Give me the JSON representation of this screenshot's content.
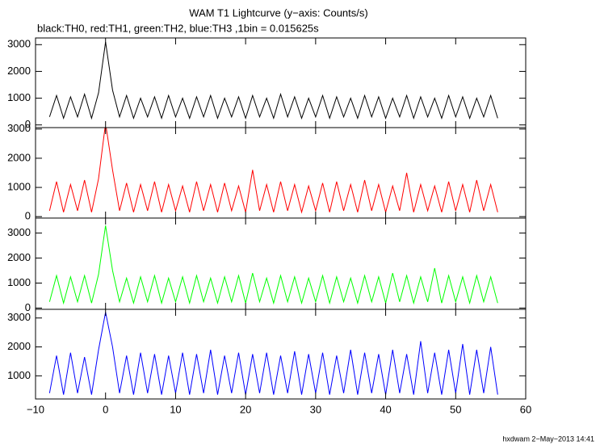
{
  "chart_data": [
    {
      "type": "line",
      "title": "WAM T1 Lightcurve (y−axis: Counts/s)",
      "subtitle": "black:TH0, red:TH1, green:TH2, blue:TH3 ,1bin = 0.015625s",
      "x": [
        -8,
        -7,
        -6,
        -5,
        -4,
        -3,
        -2,
        -1,
        0,
        1,
        2,
        3,
        4,
        5,
        6,
        7,
        8,
        9,
        10,
        11,
        12,
        13,
        14,
        15,
        16,
        17,
        18,
        19,
        20,
        21,
        22,
        23,
        24,
        25,
        26,
        27,
        28,
        29,
        30,
        31,
        32,
        33,
        34,
        35,
        36,
        37,
        38,
        39,
        40,
        41,
        42,
        43,
        44,
        45,
        46,
        47,
        48,
        49,
        50,
        51,
        52,
        53,
        54,
        55,
        56
      ],
      "series": [
        {
          "color": "#000000",
          "values": [
            300,
            1100,
            250,
            1050,
            300,
            1150,
            250,
            1200,
            3100,
            1300,
            300,
            1100,
            250,
            1000,
            300,
            1050,
            250,
            1100,
            300,
            1000,
            250,
            1050,
            300,
            1100,
            250,
            1000,
            300,
            1050,
            250,
            1100,
            300,
            1000,
            250,
            1150,
            300,
            1050,
            250,
            1000,
            300,
            1100,
            250,
            1050,
            300,
            1000,
            250,
            1100,
            300,
            1050,
            250,
            1000,
            300,
            1100,
            250,
            1050,
            300,
            1000,
            250,
            1100,
            300,
            1050,
            250,
            1000,
            300,
            1100,
            250
          ]
        }
      ],
      "xlim": [
        -10,
        60
      ],
      "ylim": [
        -100,
        3250
      ],
      "yticks": [
        0,
        1000,
        2000,
        3000
      ]
    },
    {
      "type": "line",
      "x": [
        -8,
        -7,
        -6,
        -5,
        -4,
        -3,
        -2,
        -1,
        0,
        1,
        2,
        3,
        4,
        5,
        6,
        7,
        8,
        9,
        10,
        11,
        12,
        13,
        14,
        15,
        16,
        17,
        18,
        19,
        20,
        21,
        22,
        23,
        24,
        25,
        26,
        27,
        28,
        29,
        30,
        31,
        32,
        33,
        34,
        35,
        36,
        37,
        38,
        39,
        40,
        41,
        42,
        43,
        44,
        45,
        46,
        47,
        48,
        49,
        50,
        51,
        52,
        53,
        54,
        55,
        56
      ],
      "series": [
        {
          "color": "#ff0000",
          "values": [
            200,
            1200,
            150,
            1100,
            200,
            1250,
            150,
            1300,
            3200,
            1600,
            200,
            1150,
            150,
            1100,
            200,
            1200,
            150,
            1100,
            200,
            1050,
            150,
            1200,
            200,
            1100,
            150,
            1150,
            200,
            1050,
            150,
            1600,
            200,
            1100,
            150,
            1200,
            200,
            1100,
            150,
            1050,
            200,
            1150,
            150,
            1200,
            200,
            1100,
            150,
            1250,
            200,
            1100,
            150,
            1050,
            200,
            1500,
            150,
            1100,
            200,
            1050,
            150,
            1200,
            200,
            1100,
            150,
            1250,
            200,
            1100,
            150
          ]
        }
      ],
      "xlim": [
        -10,
        60
      ],
      "ylim": [
        -50,
        3050
      ],
      "yticks": [
        0,
        1000,
        2000,
        3000
      ]
    },
    {
      "type": "line",
      "x": [
        -8,
        -7,
        -6,
        -5,
        -4,
        -3,
        -2,
        -1,
        0,
        1,
        2,
        3,
        4,
        5,
        6,
        7,
        8,
        9,
        10,
        11,
        12,
        13,
        14,
        15,
        16,
        17,
        18,
        19,
        20,
        21,
        22,
        23,
        24,
        25,
        26,
        27,
        28,
        29,
        30,
        31,
        32,
        33,
        34,
        35,
        36,
        37,
        38,
        39,
        40,
        41,
        42,
        43,
        44,
        45,
        46,
        47,
        48,
        49,
        50,
        51,
        52,
        53,
        54,
        55,
        56
      ],
      "series": [
        {
          "color": "#00ff00",
          "values": [
            250,
            1300,
            200,
            1250,
            250,
            1300,
            200,
            1350,
            3300,
            1500,
            250,
            1200,
            200,
            1250,
            250,
            1300,
            200,
            1200,
            250,
            1250,
            200,
            1300,
            250,
            1200,
            200,
            1250,
            250,
            1300,
            200,
            1400,
            250,
            1200,
            200,
            1300,
            250,
            1250,
            200,
            1200,
            250,
            1300,
            200,
            1250,
            250,
            1200,
            200,
            1300,
            250,
            1250,
            200,
            1400,
            250,
            1300,
            200,
            1250,
            250,
            1600,
            200,
            1300,
            250,
            1250,
            200,
            1300,
            250,
            1250,
            200
          ]
        }
      ],
      "xlim": [
        -10,
        60
      ],
      "ylim": [
        -50,
        3600
      ],
      "yticks": [
        0,
        1000,
        2000,
        3000
      ]
    },
    {
      "type": "line",
      "x": [
        -8,
        -7,
        -6,
        -5,
        -4,
        -3,
        -2,
        -1,
        0,
        1,
        2,
        3,
        4,
        5,
        6,
        7,
        8,
        9,
        10,
        11,
        12,
        13,
        14,
        15,
        16,
        17,
        18,
        19,
        20,
        21,
        22,
        23,
        24,
        25,
        26,
        27,
        28,
        29,
        30,
        31,
        32,
        33,
        34,
        35,
        36,
        37,
        38,
        39,
        40,
        41,
        42,
        43,
        44,
        45,
        46,
        47,
        48,
        49,
        50,
        51,
        52,
        53,
        54,
        55,
        56
      ],
      "series": [
        {
          "color": "#0000ff",
          "values": [
            400,
            1700,
            350,
            1800,
            400,
            1650,
            350,
            1900,
            3200,
            2000,
            400,
            1700,
            350,
            1800,
            400,
            1750,
            350,
            1700,
            400,
            1800,
            350,
            1750,
            400,
            1900,
            350,
            1700,
            400,
            1800,
            350,
            1750,
            400,
            1800,
            350,
            1700,
            400,
            1850,
            350,
            1750,
            400,
            1800,
            350,
            1700,
            400,
            1900,
            350,
            1800,
            400,
            1750,
            350,
            1900,
            400,
            1750,
            350,
            2200,
            400,
            1800,
            350,
            1900,
            400,
            2100,
            350,
            1900,
            400,
            2000,
            350
          ]
        }
      ],
      "xlim": [
        -10,
        60
      ],
      "ylim": [
        200,
        3300
      ],
      "yticks": [
        1000,
        2000,
        3000
      ],
      "xticks": [
        {
          "value": -10,
          "label": "−10"
        },
        0,
        10,
        20,
        30,
        40,
        50,
        60
      ]
    }
  ],
  "footer": "hxdwam  2−May−2013 14:41"
}
